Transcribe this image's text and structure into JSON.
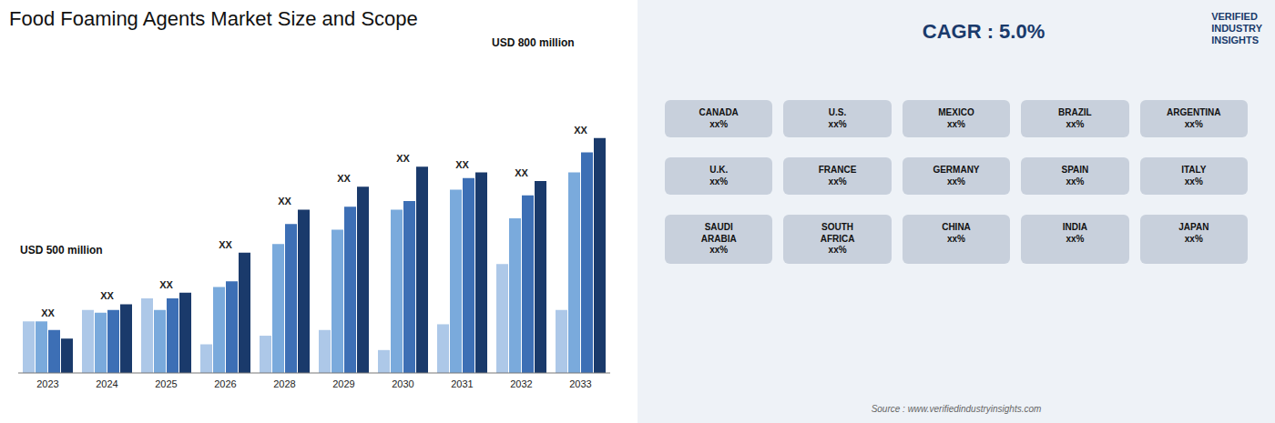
{
  "chart_data": {
    "type": "bar",
    "title": "Food Foaming Agents Market Size and Scope",
    "categories": [
      "2023",
      "2024",
      "2025",
      "2026",
      "2028",
      "2029",
      "2030",
      "2031",
      "2032",
      "2033"
    ],
    "series": [
      {
        "color": "#adc8e8",
        "values": [
          0.18,
          0.22,
          0.26,
          0.1,
          0.13,
          0.15,
          0.08,
          0.17,
          0.38,
          0.22
        ]
      },
      {
        "color": "#7aaadc",
        "values": [
          0.18,
          0.21,
          0.22,
          0.3,
          0.45,
          0.5,
          0.57,
          0.64,
          0.54,
          0.7
        ]
      },
      {
        "color": "#3d6fb5",
        "values": [
          0.15,
          0.22,
          0.26,
          0.32,
          0.52,
          0.58,
          0.6,
          0.68,
          0.62,
          0.77
        ]
      },
      {
        "color": "#1a3a6b",
        "values": [
          0.12,
          0.24,
          0.28,
          0.42,
          0.57,
          0.65,
          0.72,
          0.7,
          0.67,
          0.82
        ]
      }
    ],
    "ylim": [
      0,
      1.0
    ],
    "grid": false,
    "tick_labels": "x",
    "annotations": [
      "XX",
      "USD 500 million",
      "USD 800 million",
      "CAGR : 5.0%",
      "Source : www.verifiedindustryinsights.com",
      "VERIFIED\nINDUSTRY\nINSIGHTS",
      "CANADA\nxx%",
      "U.S.\nxx%",
      "MEXICO\nxx%",
      "BRAZIL\nxx%",
      "ARGENTINA\nxx%",
      "U.K.\nxx%",
      "FRANCE\nxx%",
      "GERMANY\nxx%",
      "SPAIN\nxx%",
      "ITALY\nxx%",
      "SAUDI\nARABIA\nxx%",
      "SOUTH\nAFRICA\nxx%",
      "CHINA\nxx%",
      "INDIA\nxx%",
      "JAPAN\nxx%"
    ]
  }
}
